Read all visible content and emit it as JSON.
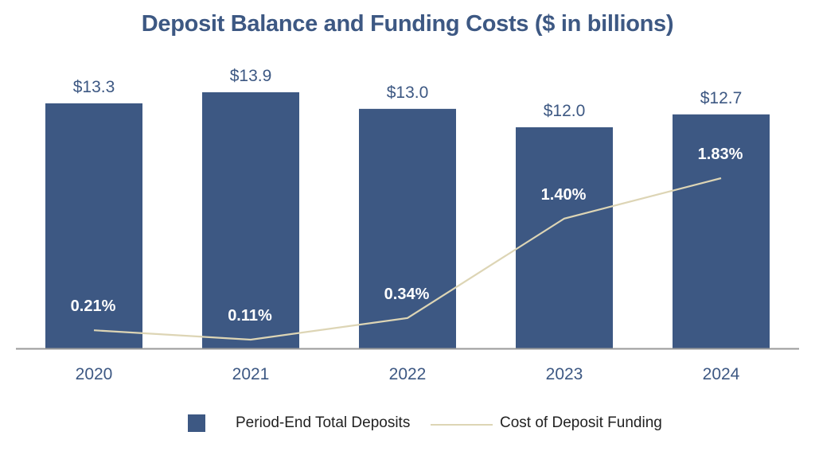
{
  "chart_data": {
    "type": "bar",
    "title": "Deposit Balance and Funding Costs ($ in billions)",
    "categories": [
      "2020",
      "2021",
      "2022",
      "2023",
      "2024"
    ],
    "series": [
      {
        "name": "Period-End Total Deposits",
        "type": "bar",
        "values": [
          13.3,
          13.9,
          13.0,
          12.0,
          12.7
        ],
        "labels": [
          "$13.3",
          "$13.9",
          "$13.0",
          "$12.0",
          "$12.7"
        ],
        "color": "#3d5883"
      },
      {
        "name": "Cost of Deposit Funding",
        "type": "line",
        "values": [
          0.21,
          0.11,
          0.34,
          1.4,
          1.83
        ],
        "labels": [
          "0.21%",
          "0.11%",
          "0.34%",
          "1.40%",
          "1.83%"
        ],
        "color": "#ddd5b5"
      }
    ],
    "ylim": [
      0,
      13.9
    ],
    "grid": false,
    "legend_position": "bottom-center"
  },
  "colors": {
    "title": "#3d5883",
    "bar": "#3d5883",
    "line": "#ddd5b5",
    "axis": "#9a9a9a"
  }
}
